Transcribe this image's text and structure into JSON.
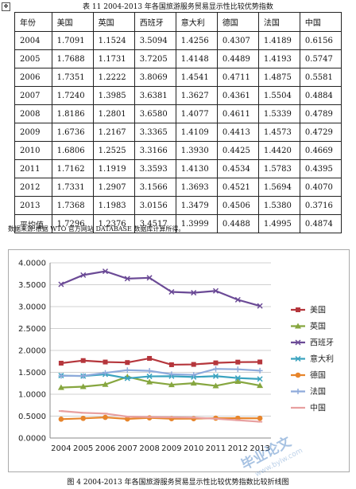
{
  "table_caption": "表 11  2004-2013 年各国旅游服务贸易显示性比较优势指数",
  "table": {
    "headers": [
      "年份",
      "美国",
      "英国",
      "西班牙",
      "意大利",
      "德国",
      "法国",
      "中国"
    ],
    "rows": [
      [
        "2004",
        "1.7091",
        "1.1524",
        "3.5094",
        "1.4256",
        "0.4307",
        "1.4189",
        "0.6156"
      ],
      [
        "2005",
        "1.7688",
        "1.1731",
        "3.7205",
        "1.4148",
        "0.4489",
        "1.4193",
        "0.5747"
      ],
      [
        "2006",
        "1.7351",
        "1.2222",
        "3.8069",
        "1.4541",
        "0.4711",
        "1.4875",
        "0.5581"
      ],
      [
        "2007",
        "1.7240",
        "1.3985",
        "3.6381",
        "1.3627",
        "0.4361",
        "1.5504",
        "0.4884"
      ],
      [
        "2008",
        "1.8186",
        "1.2801",
        "3.6580",
        "1.4077",
        "0.4611",
        "1.5339",
        "0.4789"
      ],
      [
        "2009",
        "1.6736",
        "1.2167",
        "3.3365",
        "1.4109",
        "0.4413",
        "1.4573",
        "0.4729"
      ],
      [
        "2010",
        "1.6806",
        "1.2525",
        "3.3166",
        "1.3930",
        "0.4425",
        "1.4420",
        "0.4669"
      ],
      [
        "2011",
        "1.7162",
        "1.1919",
        "3.3593",
        "1.4130",
        "0.4534",
        "1.5783",
        "0.4395"
      ],
      [
        "2012",
        "1.7331",
        "1.2907",
        "3.1566",
        "1.3693",
        "0.4521",
        "1.5694",
        "0.4070"
      ],
      [
        "2013",
        "1.7368",
        "1.1983",
        "3.0156",
        "1.3479",
        "0.4506",
        "1.5380",
        "0.3716"
      ],
      [
        "平均值",
        "1.7296",
        "1.2376",
        "3.4517",
        "1.3999",
        "0.4488",
        "1.4995",
        "0.4874"
      ]
    ]
  },
  "note": "数据来源:根据 WTO 官方网站 DATABASE 数据库计算所得。",
  "figure_caption": "图 4  2004-2013 年各国旅游服务贸易显示性比较优势指数比较折线图",
  "watermark": "毕业论文",
  "chart_data": {
    "type": "line",
    "categories": [
      "2004",
      "2005",
      "2006",
      "2007",
      "2008",
      "2009",
      "2010",
      "2011",
      "2012",
      "2013"
    ],
    "ylim": [
      0,
      4
    ],
    "ytick_labels": [
      "0.0000",
      "0.5000",
      "1.0000",
      "1.5000",
      "2.0000",
      "2.5000",
      "3.0000",
      "3.5000",
      "4.0000"
    ],
    "grid": true,
    "legend": "right",
    "series": [
      {
        "name": "美国",
        "color": "#b5363c",
        "marker": "square",
        "values": [
          1.7091,
          1.7688,
          1.7351,
          1.724,
          1.8186,
          1.6736,
          1.6806,
          1.7162,
          1.7331,
          1.7368
        ]
      },
      {
        "name": "英国",
        "color": "#86a63f",
        "marker": "triangle",
        "values": [
          1.1524,
          1.1731,
          1.2222,
          1.3985,
          1.2801,
          1.2167,
          1.2525,
          1.1919,
          1.2907,
          1.1983
        ]
      },
      {
        "name": "西班牙",
        "color": "#6b4a96",
        "marker": "x",
        "values": [
          3.5094,
          3.7205,
          3.8069,
          3.6381,
          3.658,
          3.3365,
          3.3166,
          3.3593,
          3.1566,
          3.0156
        ]
      },
      {
        "name": "意大利",
        "color": "#3aa3bf",
        "marker": "x",
        "values": [
          1.4256,
          1.4148,
          1.4541,
          1.3627,
          1.4077,
          1.4109,
          1.393,
          1.413,
          1.3693,
          1.3479
        ]
      },
      {
        "name": "德国",
        "color": "#e7852c",
        "marker": "circle",
        "values": [
          0.4307,
          0.4489,
          0.4711,
          0.4361,
          0.4611,
          0.4413,
          0.4425,
          0.4534,
          0.4521,
          0.4506
        ]
      },
      {
        "name": "法国",
        "color": "#8eaadb",
        "marker": "plus",
        "values": [
          1.4189,
          1.4193,
          1.4875,
          1.5504,
          1.5339,
          1.4573,
          1.442,
          1.5783,
          1.5694,
          1.538
        ]
      },
      {
        "name": "中国",
        "color": "#e8a0a0",
        "marker": "dash",
        "values": [
          0.6156,
          0.5747,
          0.5581,
          0.4884,
          0.4789,
          0.4729,
          0.4669,
          0.4395,
          0.407,
          0.3716
        ]
      }
    ]
  }
}
